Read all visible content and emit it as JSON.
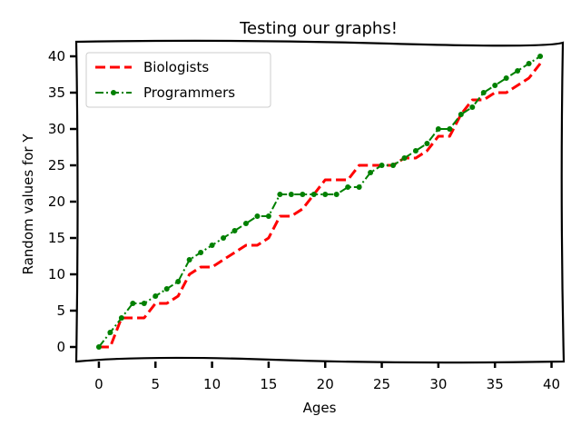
{
  "chart_data": {
    "type": "line",
    "title": "Testing our graphs!",
    "xlabel": "Ages",
    "ylabel": "Random values for Y",
    "xlim": [
      -2,
      41
    ],
    "ylim": [
      -2,
      42
    ],
    "xticks": [
      0,
      5,
      10,
      15,
      20,
      25,
      30,
      35,
      40
    ],
    "yticks": [
      0,
      5,
      10,
      15,
      20,
      25,
      30,
      35,
      40
    ],
    "grid": false,
    "legend_position": "top-left",
    "x": [
      0,
      1,
      2,
      3,
      4,
      5,
      6,
      7,
      8,
      9,
      10,
      11,
      12,
      13,
      14,
      15,
      16,
      17,
      18,
      19,
      20,
      21,
      22,
      23,
      24,
      25,
      26,
      27,
      28,
      29,
      30,
      31,
      32,
      33,
      34,
      35,
      36,
      37,
      38,
      39
    ],
    "series": [
      {
        "name": "Biologists",
        "color": "#ff0000",
        "style": "dashed",
        "values": [
          0,
          0,
          4,
          4,
          4,
          6,
          6,
          7,
          10,
          11,
          11,
          12,
          13,
          14,
          14,
          15,
          18,
          18,
          19,
          21,
          23,
          23,
          23,
          25,
          25,
          25,
          25,
          26,
          26,
          27,
          29,
          29,
          32,
          34,
          34,
          35,
          35,
          36,
          37,
          39
        ]
      },
      {
        "name": "Programmers",
        "color": "#008000",
        "style": "dashdot",
        "marker": "circle",
        "values": [
          0,
          2,
          4,
          6,
          6,
          7,
          8,
          9,
          12,
          13,
          14,
          15,
          16,
          17,
          18,
          18,
          21,
          21,
          21,
          21,
          21,
          21,
          22,
          22,
          24,
          25,
          25,
          26,
          27,
          28,
          30,
          30,
          32,
          33,
          35,
          36,
          37,
          38,
          39,
          40
        ]
      }
    ]
  }
}
